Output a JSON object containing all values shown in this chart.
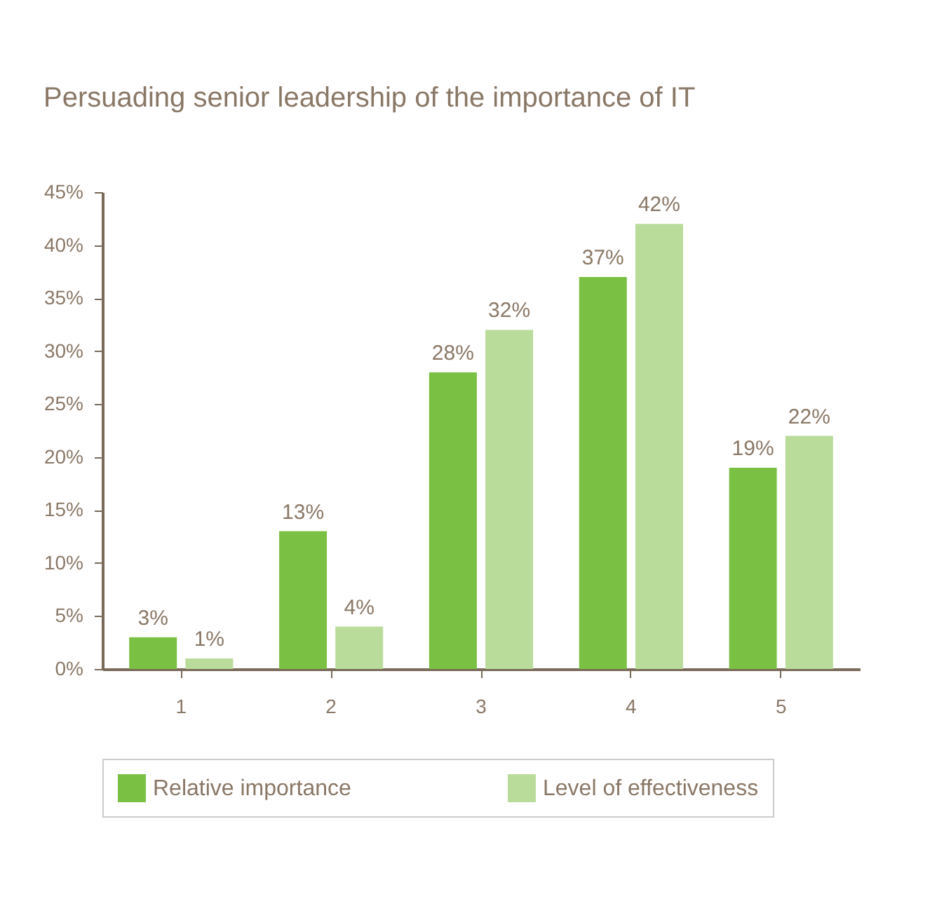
{
  "chart_data": {
    "type": "bar",
    "title": "Persuading senior leadership of the importance of IT",
    "categories": [
      "1",
      "2",
      "3",
      "4",
      "5"
    ],
    "series": [
      {
        "name": "Relative importance",
        "color": "#7ac143",
        "values": [
          3,
          13,
          28,
          37,
          19
        ],
        "value_labels": [
          "3%",
          "13%",
          "28%",
          "37%",
          "19%"
        ]
      },
      {
        "name": "Level of effectiveness",
        "color": "#badc9b",
        "values": [
          1,
          4,
          32,
          42,
          22
        ],
        "value_labels": [
          "1%",
          "4%",
          "32%",
          "42%",
          "22%"
        ]
      }
    ],
    "ylim": [
      0,
      45
    ],
    "yticks": [
      {
        "value": 0,
        "label": "0%"
      },
      {
        "value": 5,
        "label": "5%"
      },
      {
        "value": 10,
        "label": "10%"
      },
      {
        "value": 15,
        "label": "15%"
      },
      {
        "value": 20,
        "label": "20%"
      },
      {
        "value": 25,
        "label": "25%"
      },
      {
        "value": 30,
        "label": "30%"
      },
      {
        "value": 35,
        "label": "35%"
      },
      {
        "value": 40,
        "label": "40%"
      },
      {
        "value": 45,
        "label": "45%"
      }
    ],
    "grid": false,
    "legend": "bottom"
  }
}
